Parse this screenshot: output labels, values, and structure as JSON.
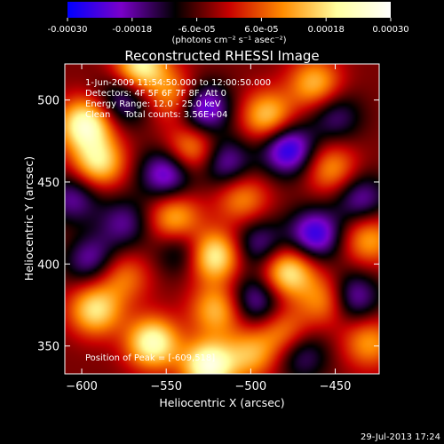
{
  "chart_data": {
    "type": "heatmap",
    "title": "Reconstructed RHESSI Image",
    "xlabel": "Heliocentric X (arcsec)",
    "ylabel": "Heliocentric Y (arcsec)",
    "xlim": [
      -610,
      -424
    ],
    "ylim": [
      333,
      522
    ],
    "x_ticks": [
      -600,
      -550,
      -500,
      -450
    ],
    "y_ticks": [
      350,
      400,
      450,
      500
    ],
    "colorbar": {
      "unit_label": "(photons cm⁻² s⁻¹ asec⁻²)",
      "range": [
        -0.0003,
        0.0003
      ],
      "tick_labels": [
        "-0.00030",
        "-0.00018",
        "-6.0e-05",
        "6.0e-05",
        "0.00018",
        "0.00030"
      ],
      "tick_values": [
        -0.0003,
        -0.00018,
        -6e-05,
        6e-05,
        0.00018,
        0.0003
      ],
      "colors": [
        "#0000ff",
        "#7a00c8",
        "#000000",
        "#c80000",
        "#ff8c00",
        "#ffff9f",
        "#ffffff"
      ]
    },
    "annotations": [
      "1-Jun-2009 11:54:50.000 to 12:00:50.000",
      "Detectors: 4F 5F 6F 7F 8F, Att 0",
      "Energy Range: 12.0 - 25.0 keV",
      "Clean     Total counts: 3.56E+04"
    ],
    "peak_label": "Position of Peak = [-609,518]",
    "peak": {
      "x": -609,
      "y": 518
    },
    "peaks_approx": [
      {
        "x": -598,
        "y": 485,
        "v": 0.00028
      },
      {
        "x": -590,
        "y": 462,
        "v": 0.00022
      },
      {
        "x": -565,
        "y": 520,
        "v": 0.00025
      },
      {
        "x": -545,
        "y": 502,
        "v": 0.00015
      },
      {
        "x": -535,
        "y": 470,
        "v": 0.00017
      },
      {
        "x": -490,
        "y": 490,
        "v": 0.0002
      },
      {
        "x": -462,
        "y": 510,
        "v": 0.00018
      },
      {
        "x": -452,
        "y": 458,
        "v": 0.00015
      },
      {
        "x": -430,
        "y": 415,
        "v": 0.00016
      },
      {
        "x": -545,
        "y": 428,
        "v": 0.00018
      },
      {
        "x": -522,
        "y": 405,
        "v": 0.00026
      },
      {
        "x": -505,
        "y": 440,
        "v": 0.00014
      },
      {
        "x": -575,
        "y": 392,
        "v": 0.00012
      },
      {
        "x": -478,
        "y": 395,
        "v": 0.00024
      },
      {
        "x": -455,
        "y": 378,
        "v": 0.00016
      },
      {
        "x": -430,
        "y": 352,
        "v": 0.00015
      },
      {
        "x": -592,
        "y": 372,
        "v": 0.00022
      },
      {
        "x": -558,
        "y": 352,
        "v": 0.00027
      },
      {
        "x": -520,
        "y": 372,
        "v": 0.00018
      },
      {
        "x": -500,
        "y": 345,
        "v": 0.00016
      },
      {
        "x": -525,
        "y": 338,
        "v": 0.0003
      },
      {
        "x": -480,
        "y": 358,
        "v": 0.00014
      },
      {
        "x": -600,
        "y": 408,
        "v": 0.00012
      }
    ],
    "troughs_approx": [
      {
        "x": -597,
        "y": 405,
        "v": -0.00025
      },
      {
        "x": -575,
        "y": 500,
        "v": -0.00015
      },
      {
        "x": -550,
        "y": 455,
        "v": -0.0002
      },
      {
        "x": -528,
        "y": 495,
        "v": -0.00022
      },
      {
        "x": -515,
        "y": 462,
        "v": -0.00016
      },
      {
        "x": -478,
        "y": 470,
        "v": -0.00024
      },
      {
        "x": -462,
        "y": 418,
        "v": -0.00022
      },
      {
        "x": -540,
        "y": 408,
        "v": -0.00012
      },
      {
        "x": -495,
        "y": 412,
        "v": -0.00014
      },
      {
        "x": -440,
        "y": 380,
        "v": -0.00018
      },
      {
        "x": -497,
        "y": 378,
        "v": -0.00016
      },
      {
        "x": -470,
        "y": 345,
        "v": -0.00013
      },
      {
        "x": -435,
        "y": 440,
        "v": -0.00015
      },
      {
        "x": -605,
        "y": 440,
        "v": -0.00014
      },
      {
        "x": -575,
        "y": 425,
        "v": -0.00013
      },
      {
        "x": -450,
        "y": 490,
        "v": -0.00012
      }
    ]
  },
  "footer": {
    "timestamp": "29-Jul-2013 17:24"
  }
}
